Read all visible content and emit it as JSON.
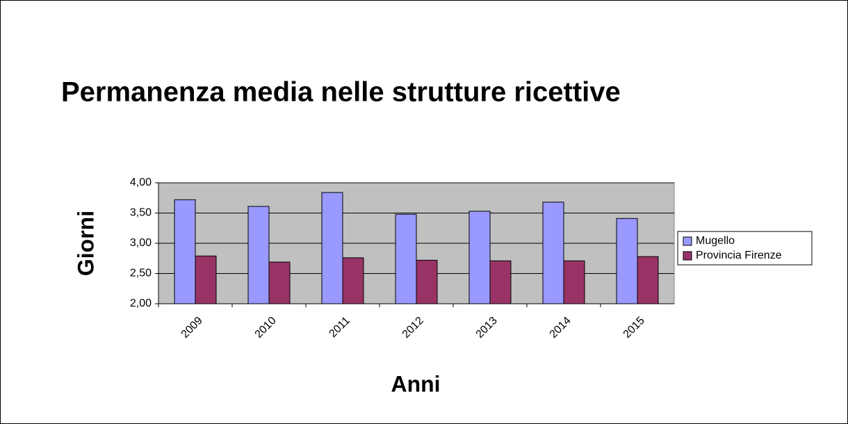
{
  "chart_data": {
    "type": "bar",
    "title": "Permanenza media nelle strutture ricettive",
    "x_label": "Anni",
    "y_label": "Giorni",
    "categories": [
      "2009",
      "2010",
      "2011",
      "2012",
      "2013",
      "2014",
      "2015"
    ],
    "series": [
      {
        "name": "Mugello",
        "color": "#9999ff",
        "values": [
          3.72,
          3.61,
          3.84,
          3.48,
          3.53,
          3.68,
          3.41
        ]
      },
      {
        "name": "Provincia Firenze",
        "color": "#993366",
        "values": [
          2.79,
          2.69,
          2.76,
          2.72,
          2.71,
          2.71,
          2.78
        ]
      }
    ],
    "ylim": [
      2,
      4
    ],
    "yticks": [
      {
        "value": 2,
        "label": "2,00"
      },
      {
        "value": 2.5,
        "label": "2,50"
      },
      {
        "value": 3,
        "label": "3,00"
      },
      {
        "value": 3.5,
        "label": "3,50"
      },
      {
        "value": 4,
        "label": "4,00"
      }
    ],
    "grid": true,
    "legend": "right"
  }
}
